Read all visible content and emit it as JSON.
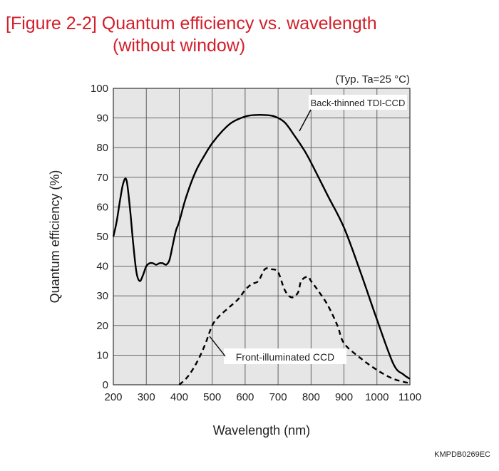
{
  "figure": {
    "title_line1": "[Figure 2-2] Quantum efficiency vs. wavelength",
    "title_line2": "(without window)",
    "document_code": "KMPDB0269EC"
  },
  "colors": {
    "title": "#d31f2b",
    "plot_background": "#e6e6e6",
    "grid": "#555555",
    "curve": "#000000"
  },
  "chart_data": {
    "type": "line",
    "title": "Quantum efficiency vs. wavelength (without window)",
    "condition": "(Typ. Ta=25 °C)",
    "xlabel": "Wavelength (nm)",
    "ylabel": "Quantum efficiency (%)",
    "xlim": [
      200,
      1100
    ],
    "ylim": [
      0,
      100
    ],
    "xticks": [
      200,
      300,
      400,
      500,
      600,
      700,
      800,
      900,
      1000,
      1100
    ],
    "yticks": [
      0,
      10,
      20,
      30,
      40,
      50,
      60,
      70,
      80,
      90,
      100
    ],
    "grid": true,
    "series": [
      {
        "name": "Back-thinned TDI-CCD",
        "style": "solid",
        "x": [
          200,
          210,
          220,
          230,
          240,
          250,
          260,
          270,
          280,
          290,
          300,
          310,
          320,
          330,
          340,
          350,
          360,
          370,
          380,
          390,
          400,
          420,
          450,
          480,
          500,
          530,
          560,
          600,
          630,
          660,
          690,
          720,
          750,
          780,
          800,
          850,
          900,
          950,
          1000,
          1050,
          1080,
          1100
        ],
        "y": [
          50,
          55,
          62,
          68,
          69,
          60,
          48,
          38,
          35,
          37,
          40,
          41,
          41,
          40.5,
          41,
          41,
          40.5,
          42,
          47,
          52,
          55,
          63,
          72,
          78,
          81.5,
          85.5,
          88.5,
          90.5,
          91,
          91,
          90.5,
          88.5,
          84,
          79,
          75,
          64,
          53,
          38,
          22,
          7,
          3.5,
          2
        ]
      },
      {
        "name": "Front-illuminated CCD",
        "style": "dashed",
        "x": [
          400,
          420,
          440,
          460,
          480,
          500,
          520,
          550,
          580,
          600,
          620,
          640,
          660,
          680,
          700,
          720,
          740,
          760,
          770,
          790,
          800,
          820,
          850,
          880,
          900,
          950,
          1000,
          1050,
          1100
        ],
        "y": [
          0,
          2,
          5,
          9,
          14,
          20,
          23,
          26,
          29,
          32,
          34,
          35,
          39,
          39,
          38,
          32,
          29.5,
          31,
          35,
          36.5,
          35,
          32,
          27,
          20,
          14,
          9,
          5,
          2,
          0.5
        ]
      }
    ],
    "annotations": [
      {
        "text": "Back-thinned TDI-CCD",
        "series": "Back-thinned TDI-CCD"
      },
      {
        "text": "Front-illuminated CCD",
        "series": "Front-illuminated CCD"
      }
    ]
  }
}
